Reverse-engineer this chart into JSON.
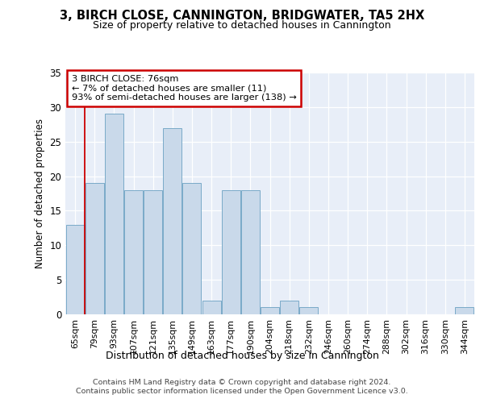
{
  "title": "3, BIRCH CLOSE, CANNINGTON, BRIDGWATER, TA5 2HX",
  "subtitle": "Size of property relative to detached houses in Cannington",
  "xlabel": "Distribution of detached houses by size in Cannington",
  "ylabel": "Number of detached properties",
  "bar_labels": [
    "65sqm",
    "79sqm",
    "93sqm",
    "107sqm",
    "121sqm",
    "135sqm",
    "149sqm",
    "163sqm",
    "177sqm",
    "190sqm",
    "204sqm",
    "218sqm",
    "232sqm",
    "246sqm",
    "260sqm",
    "274sqm",
    "288sqm",
    "302sqm",
    "316sqm",
    "330sqm",
    "344sqm"
  ],
  "bar_values": [
    13,
    19,
    29,
    18,
    18,
    27,
    19,
    2,
    18,
    18,
    1,
    2,
    1,
    0,
    0,
    0,
    0,
    0,
    0,
    0,
    1
  ],
  "bar_color": "#c9d9ea",
  "bar_edgecolor": "#7aaac8",
  "bar_linewidth": 0.7,
  "annotation_line1": "3 BIRCH CLOSE: 76sqm",
  "annotation_line2": "← 7% of detached houses are smaller (11)",
  "annotation_line3": "93% of semi-detached houses are larger (138) →",
  "annotation_box_color": "#ffffff",
  "annotation_box_edgecolor": "#cc0000",
  "vline_color": "#cc0000",
  "ylim": [
    0,
    35
  ],
  "yticks": [
    0,
    5,
    10,
    15,
    20,
    25,
    30,
    35
  ],
  "background_color": "#e8eef8",
  "grid_color": "#ffffff",
  "footer1": "Contains HM Land Registry data © Crown copyright and database right 2024.",
  "footer2": "Contains public sector information licensed under the Open Government Licence v3.0."
}
